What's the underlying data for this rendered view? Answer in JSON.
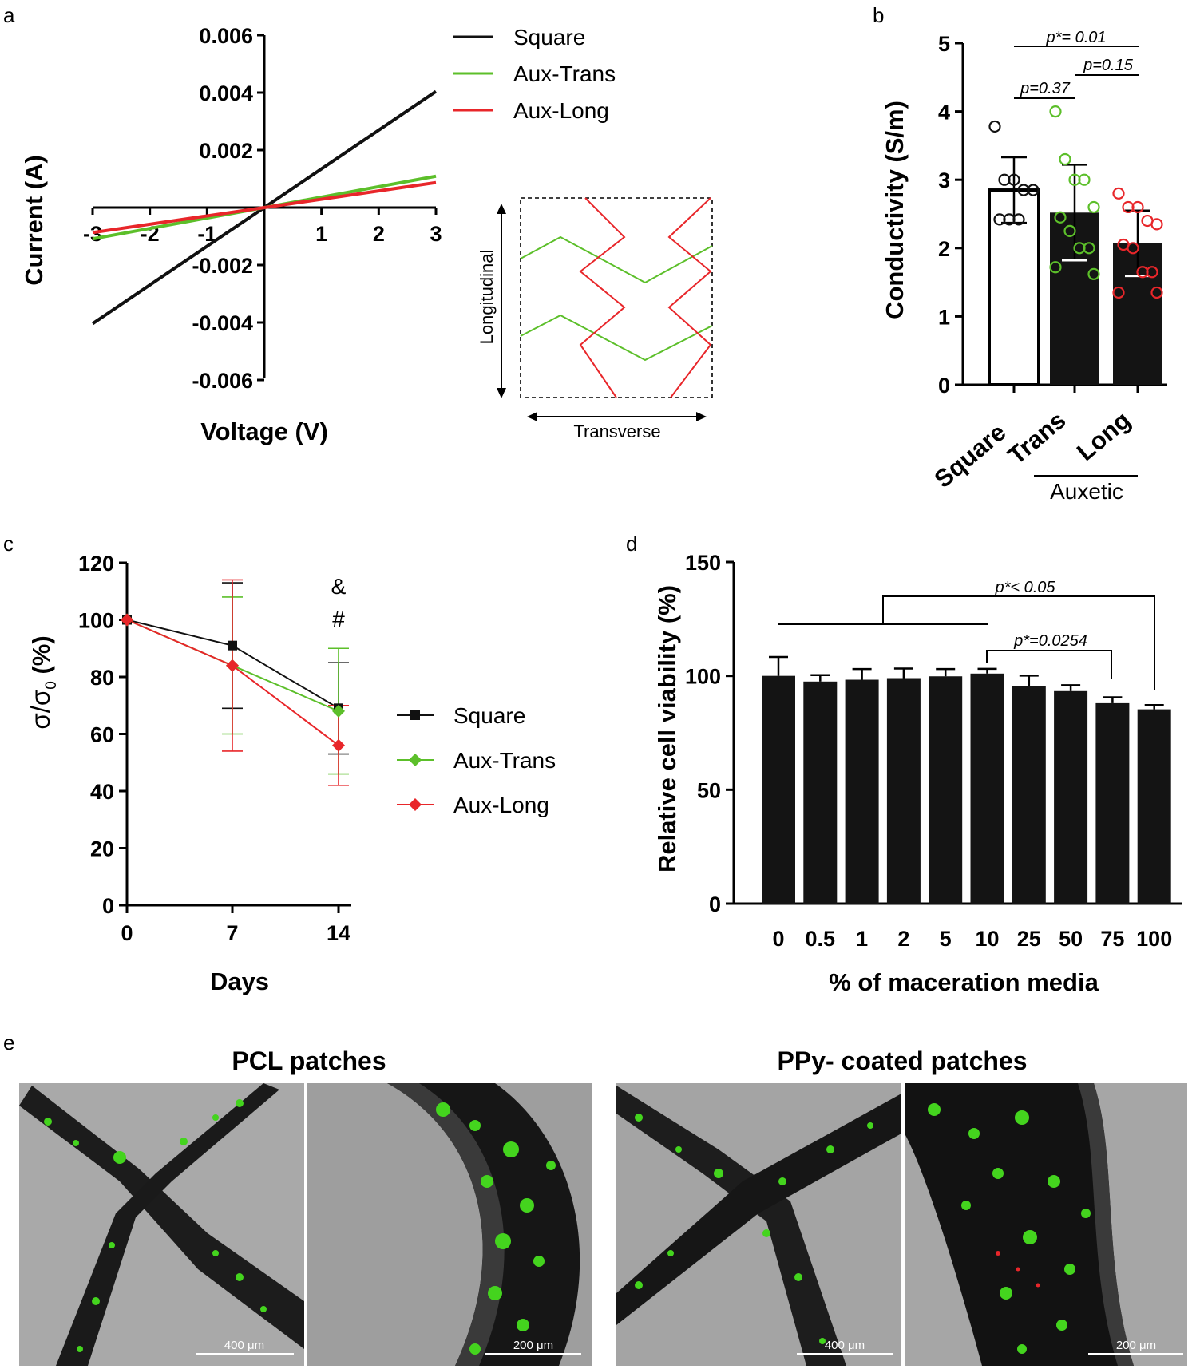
{
  "panel_letters": {
    "a": "a",
    "b": "b",
    "c": "c",
    "d": "d",
    "e": "e"
  },
  "colors": {
    "square": "#111111",
    "aux_trans": "#5cbf2a",
    "aux_long": "#e8262a",
    "bar": "#141414"
  },
  "chart_data": [
    {
      "id": "a",
      "type": "line",
      "xlabel": "Voltage (V)",
      "ylabel": "Current (A)",
      "xlim": [
        -3,
        3
      ],
      "ylim": [
        -0.006,
        0.006
      ],
      "x_ticks": [
        -3,
        -2,
        -1,
        1,
        2,
        3
      ],
      "x_tick_labels": [
        "-3",
        "-2",
        "-1",
        "1",
        "2",
        "3"
      ],
      "y_ticks": [
        0.006,
        0.004,
        0.002,
        -0.002,
        -0.004,
        -0.006
      ],
      "y_tick_labels": [
        "0.006",
        "0.004",
        "0.002",
        "-0.002",
        "-0.004",
        "-0.006"
      ],
      "series": [
        {
          "name": "Square",
          "x": [
            -3,
            3
          ],
          "y": [
            -0.00404,
            0.00404
          ]
        },
        {
          "name": "Aux-Trans",
          "x": [
            -3,
            3
          ],
          "y": [
            -0.00109,
            0.00109
          ]
        },
        {
          "name": "Aux-Long",
          "x": [
            -3,
            3
          ],
          "y": [
            -0.00087,
            0.00087
          ]
        }
      ],
      "inset": {
        "longitudinal_label": "Longitudinal",
        "transverse_label": "Transverse"
      }
    },
    {
      "id": "b",
      "type": "bar",
      "ylabel": "Conductivity (S/m)",
      "ylim": [
        0,
        5
      ],
      "y_ticks": [
        0,
        1,
        2,
        3,
        4,
        5
      ],
      "y_tick_labels": [
        "0",
        "1",
        "2",
        "3",
        "4",
        "5"
      ],
      "categories": [
        "Square",
        "Trans",
        "Long"
      ],
      "group_label": "Auxetic",
      "values": [
        2.85,
        2.52,
        2.07
      ],
      "errors": [
        0.48,
        0.7,
        0.48
      ],
      "points": [
        [
          3.78,
          3.0,
          3.0,
          2.85,
          2.85,
          2.42,
          2.42,
          2.42
        ],
        [
          4.0,
          3.3,
          3.0,
          3.0,
          2.6,
          2.45,
          2.25,
          2.0,
          2.0,
          1.72,
          1.62
        ],
        [
          2.8,
          2.6,
          2.6,
          2.4,
          2.35,
          2.05,
          2.0,
          1.65,
          1.65,
          1.35,
          1.35
        ]
      ],
      "annotations": [
        "p*= 0.01",
        "p=0.15",
        "p=0.37"
      ]
    },
    {
      "id": "c",
      "type": "line",
      "xlabel": "Days",
      "ylabel_main": "σ/σ",
      "ylabel_sub": "0",
      "ylabel_unit": " (%)",
      "ylim": [
        0,
        120
      ],
      "y_ticks": [
        0,
        20,
        40,
        60,
        80,
        100,
        120
      ],
      "y_tick_labels": [
        "0",
        "20",
        "40",
        "60",
        "80",
        "100",
        "120"
      ],
      "x": [
        0,
        7,
        14
      ],
      "x_tick_labels": [
        "0",
        "7",
        "14"
      ],
      "series": [
        {
          "name": "Square",
          "values": [
            100,
            91,
            69
          ],
          "errors": [
            0,
            22,
            16
          ]
        },
        {
          "name": "Aux-Trans",
          "values": [
            100,
            84,
            68
          ],
          "errors": [
            0,
            24,
            22
          ]
        },
        {
          "name": "Aux-Long",
          "values": [
            100,
            84,
            56
          ],
          "errors": [
            0,
            30,
            14
          ]
        }
      ],
      "annotations": [
        "&",
        "#"
      ]
    },
    {
      "id": "d",
      "type": "bar",
      "xlabel": "% of maceration media",
      "ylabel": "Relative cell viability (%)",
      "ylim": [
        0,
        150
      ],
      "y_ticks": [
        0,
        50,
        100,
        150
      ],
      "y_tick_labels": [
        "0",
        "50",
        "100",
        "150"
      ],
      "categories": [
        "0",
        "0.5",
        "1",
        "2",
        "5",
        "10",
        "25",
        "50",
        "75",
        "100"
      ],
      "values": [
        100,
        97.5,
        98.3,
        99,
        99.8,
        101,
        95.5,
        93.3,
        88,
        85.3
      ],
      "errors": [
        8.3,
        2.8,
        4.7,
        4.2,
        3.2,
        2.1,
        4.6,
        2.6,
        2.6,
        1.9
      ],
      "annotations": [
        "p*< 0.05",
        "p*=0.0254"
      ]
    }
  ],
  "panel_e": {
    "left_title": "PCL patches",
    "right_title": "PPy- coated patches",
    "scale_labels": [
      "400 μm",
      "200 μm",
      "400 μm",
      "200 μm"
    ]
  }
}
